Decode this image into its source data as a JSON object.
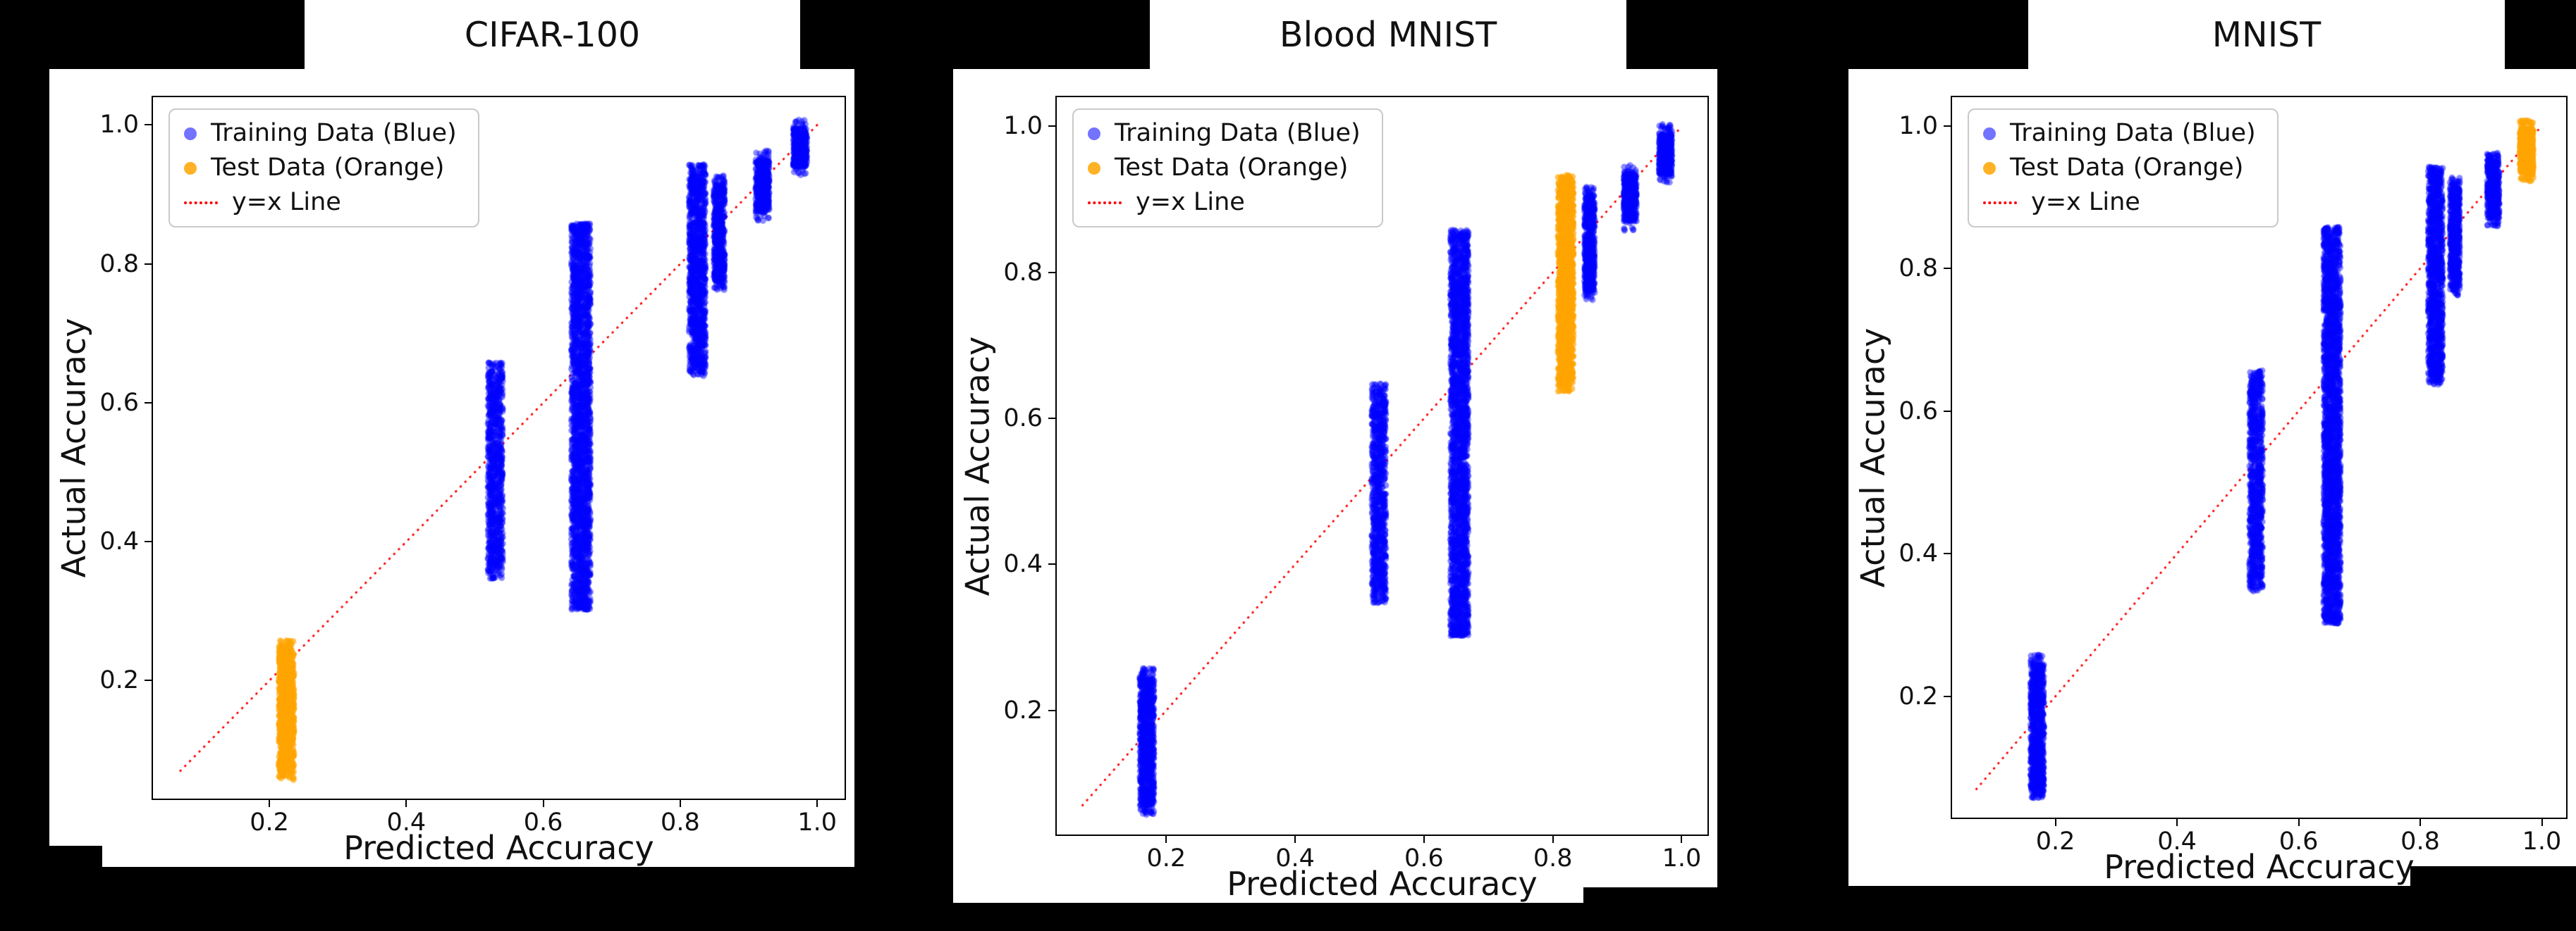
{
  "figure": {
    "background_color": "#000000",
    "panel_color": "#ffffff",
    "spine_color": "#000000",
    "text_color": "#111111"
  },
  "chart_data": [
    {
      "type": "scatter",
      "title": "CIFAR-100",
      "xlabel": "Predicted Accuracy",
      "ylabel": "Actual Accuracy",
      "xlim": [
        0.03,
        1.04
      ],
      "ylim": [
        0.03,
        1.04
      ],
      "xticks": [
        0.2,
        0.4,
        0.6,
        0.8,
        1.0
      ],
      "yticks": [
        0.2,
        0.4,
        0.6,
        0.8,
        1.0
      ],
      "grid": false,
      "legend": [
        "Training Data (Blue)",
        "Test Data (Orange)",
        "y=x Line"
      ],
      "legend_position": "upper-left",
      "identity_line": {
        "label": "y=x Line",
        "color": "#ff0000",
        "style": "dotted",
        "from": [
          0.07,
          0.07
        ],
        "to": [
          1.0,
          1.0
        ]
      },
      "series": [
        {
          "name": "Training Data (Blue)",
          "color": "#0000ff",
          "alpha": 0.45,
          "marker_size": 4.5,
          "clusters": [
            {
              "x": 0.53,
              "x_jitter": 0.011,
              "y_min": 0.36,
              "y_max": 0.645,
              "n": 900
            },
            {
              "x": 0.655,
              "x_jitter": 0.014,
              "y_min": 0.315,
              "y_max": 0.845,
              "n": 2400
            },
            {
              "x": 0.825,
              "x_jitter": 0.012,
              "y_min": 0.65,
              "y_max": 0.93,
              "n": 1200
            },
            {
              "x": 0.857,
              "x_jitter": 0.008,
              "y_min": 0.775,
              "y_max": 0.915,
              "n": 600
            },
            {
              "x": 0.92,
              "x_jitter": 0.01,
              "y_min": 0.875,
              "y_max": 0.95,
              "n": 500
            },
            {
              "x": 0.975,
              "x_jitter": 0.01,
              "y_min": 0.94,
              "y_max": 0.995,
              "n": 500
            }
          ]
        },
        {
          "name": "Test Data (Orange)",
          "color": "#ffa500",
          "alpha": 0.65,
          "marker_size": 4.5,
          "clusters": [
            {
              "x": 0.225,
              "x_jitter": 0.011,
              "y_min": 0.07,
              "y_max": 0.245,
              "n": 900
            }
          ]
        }
      ]
    },
    {
      "type": "scatter",
      "title": "Blood MNIST",
      "xlabel": "Predicted Accuracy",
      "ylabel": "Actual Accuracy",
      "xlim": [
        0.03,
        1.04
      ],
      "ylim": [
        0.03,
        1.04
      ],
      "xticks": [
        0.2,
        0.4,
        0.6,
        0.8,
        1.0
      ],
      "yticks": [
        0.2,
        0.4,
        0.6,
        0.8,
        1.0
      ],
      "grid": false,
      "legend": [
        "Training Data (Blue)",
        "Test Data (Orange)",
        "y=x Line"
      ],
      "legend_position": "upper-left",
      "identity_line": {
        "label": "y=x Line",
        "color": "#ff0000",
        "style": "dotted",
        "from": [
          0.07,
          0.07
        ],
        "to": [
          1.0,
          1.0
        ]
      },
      "series": [
        {
          "name": "Training Data (Blue)",
          "color": "#0000ff",
          "alpha": 0.45,
          "marker_size": 4.5,
          "clusters": [
            {
              "x": 0.17,
              "x_jitter": 0.011,
              "y_min": 0.07,
              "y_max": 0.245,
              "n": 900
            },
            {
              "x": 0.53,
              "x_jitter": 0.011,
              "y_min": 0.36,
              "y_max": 0.635,
              "n": 900
            },
            {
              "x": 0.655,
              "x_jitter": 0.014,
              "y_min": 0.315,
              "y_max": 0.845,
              "n": 2400
            },
            {
              "x": 0.857,
              "x_jitter": 0.008,
              "y_min": 0.775,
              "y_max": 0.905,
              "n": 600
            },
            {
              "x": 0.92,
              "x_jitter": 0.01,
              "y_min": 0.87,
              "y_max": 0.935,
              "n": 500
            },
            {
              "x": 0.975,
              "x_jitter": 0.01,
              "y_min": 0.935,
              "y_max": 0.99,
              "n": 500
            }
          ]
        },
        {
          "name": "Test Data (Orange)",
          "color": "#ffa500",
          "alpha": 0.65,
          "marker_size": 4.5,
          "clusters": [
            {
              "x": 0.82,
              "x_jitter": 0.012,
              "y_min": 0.65,
              "y_max": 0.92,
              "n": 1200
            }
          ]
        }
      ]
    },
    {
      "type": "scatter",
      "title": "MNIST",
      "xlabel": "Predicted Accuracy",
      "ylabel": "Actual Accuracy",
      "xlim": [
        0.03,
        1.04
      ],
      "ylim": [
        0.03,
        1.04
      ],
      "xticks": [
        0.2,
        0.4,
        0.6,
        0.8,
        1.0
      ],
      "yticks": [
        0.2,
        0.4,
        0.6,
        0.8,
        1.0
      ],
      "grid": false,
      "legend": [
        "Training Data (Blue)",
        "Test Data (Orange)",
        "y=x Line"
      ],
      "legend_position": "upper-left",
      "identity_line": {
        "label": "y=x Line",
        "color": "#ff0000",
        "style": "dotted",
        "from": [
          0.07,
          0.07
        ],
        "to": [
          1.0,
          1.0
        ]
      },
      "series": [
        {
          "name": "Training Data (Blue)",
          "color": "#0000ff",
          "alpha": 0.45,
          "marker_size": 4.5,
          "clusters": [
            {
              "x": 0.17,
              "x_jitter": 0.011,
              "y_min": 0.07,
              "y_max": 0.245,
              "n": 900
            },
            {
              "x": 0.53,
              "x_jitter": 0.011,
              "y_min": 0.36,
              "y_max": 0.645,
              "n": 900
            },
            {
              "x": 0.655,
              "x_jitter": 0.014,
              "y_min": 0.315,
              "y_max": 0.845,
              "n": 2400
            },
            {
              "x": 0.825,
              "x_jitter": 0.012,
              "y_min": 0.65,
              "y_max": 0.93,
              "n": 1200
            },
            {
              "x": 0.857,
              "x_jitter": 0.008,
              "y_min": 0.775,
              "y_max": 0.915,
              "n": 600
            },
            {
              "x": 0.92,
              "x_jitter": 0.01,
              "y_min": 0.87,
              "y_max": 0.95,
              "n": 500
            }
          ]
        },
        {
          "name": "Test Data (Orange)",
          "color": "#ffa500",
          "alpha": 0.65,
          "marker_size": 4.5,
          "clusters": [
            {
              "x": 0.975,
              "x_jitter": 0.011,
              "y_min": 0.935,
              "y_max": 0.995,
              "n": 600
            }
          ]
        }
      ]
    }
  ]
}
